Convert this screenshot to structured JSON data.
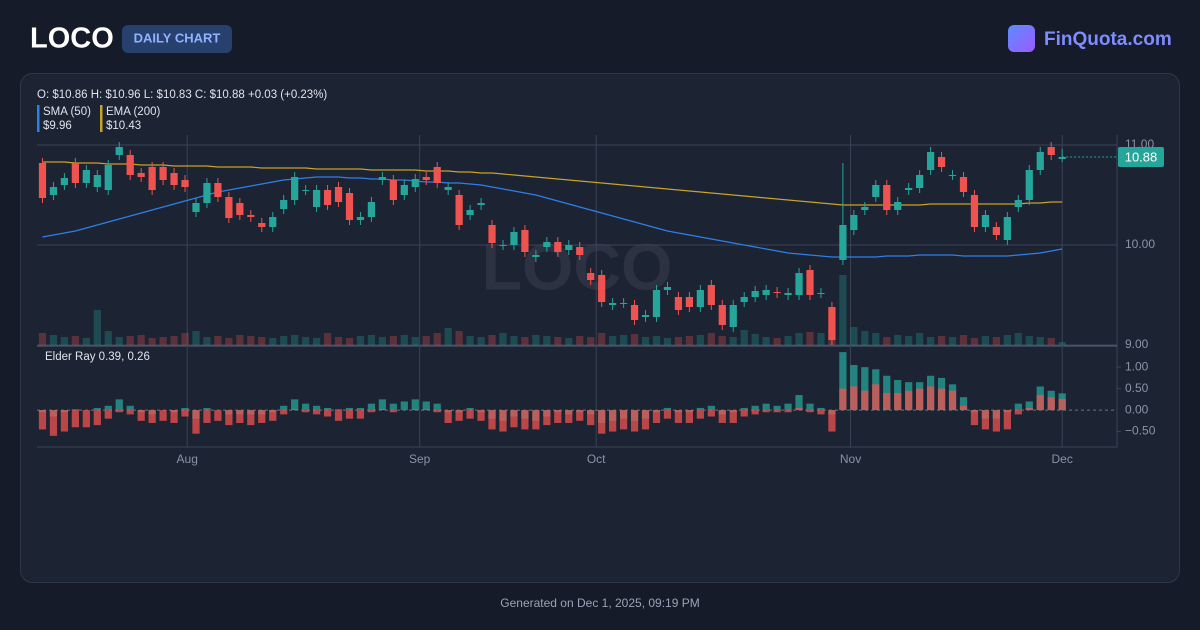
{
  "header": {
    "title": "LOCO",
    "badge": "DAILY CHART",
    "brand": "FinQuota.com"
  },
  "chart_data": {
    "type": "candlestick",
    "ohlc_text": "O: $10.86 H: $10.96 L: $10.83 C: $10.88 +0.03 (+0.23%)",
    "up_color": "#26a69a",
    "down_color": "#ef5350",
    "open": [
      10.82,
      10.5,
      10.6,
      10.82,
      10.62,
      10.58,
      10.55,
      10.9,
      10.9,
      10.72,
      10.78,
      10.78,
      10.72,
      10.65,
      10.33,
      10.42,
      10.62,
      10.48,
      10.42,
      10.3,
      10.22,
      10.18,
      10.36,
      10.45,
      10.55,
      10.38,
      10.55,
      10.58,
      10.52,
      10.25,
      10.28,
      10.65,
      10.65,
      10.5,
      10.58,
      10.68,
      10.78,
      10.55,
      10.5,
      10.3,
      10.4,
      10.2,
      10.0,
      10.0,
      10.15,
      9.88,
      9.98,
      10.03,
      9.95,
      9.98,
      9.72,
      9.7,
      9.4,
      9.42,
      9.4,
      9.28,
      9.28,
      9.55,
      9.48,
      9.48,
      9.38,
      9.6,
      9.4,
      9.18,
      9.43,
      9.48,
      9.5,
      9.53,
      9.5,
      9.5,
      9.75,
      9.52,
      9.38,
      9.85,
      10.15,
      10.35,
      10.48,
      10.6,
      10.35,
      10.55,
      10.57,
      10.75,
      10.88,
      10.7,
      10.68,
      10.5,
      10.18,
      10.18,
      10.05,
      10.38,
      10.45,
      10.75,
      10.98,
      10.86
    ],
    "high": [
      10.87,
      10.63,
      10.72,
      10.87,
      10.8,
      10.75,
      10.85,
      11.03,
      10.95,
      10.77,
      10.83,
      10.83,
      10.77,
      10.7,
      10.47,
      10.67,
      10.67,
      10.53,
      10.47,
      10.35,
      10.27,
      10.33,
      10.5,
      10.73,
      10.6,
      10.6,
      10.6,
      10.63,
      10.57,
      10.33,
      10.48,
      10.73,
      10.7,
      10.65,
      10.71,
      10.73,
      10.83,
      10.63,
      10.55,
      10.4,
      10.47,
      10.25,
      10.05,
      10.18,
      10.2,
      9.95,
      10.08,
      10.08,
      10.05,
      10.03,
      9.77,
      9.75,
      9.47,
      9.47,
      9.45,
      9.35,
      9.6,
      9.63,
      9.53,
      9.53,
      9.6,
      9.65,
      9.45,
      9.45,
      9.53,
      9.59,
      9.6,
      9.58,
      9.57,
      9.77,
      9.8,
      9.57,
      9.43,
      10.82,
      10.35,
      10.43,
      10.65,
      10.65,
      10.48,
      10.62,
      10.75,
      10.98,
      10.93,
      10.75,
      10.73,
      10.55,
      10.35,
      10.23,
      10.33,
      10.5,
      10.8,
      10.98,
      11.03,
      10.96
    ],
    "low": [
      10.42,
      10.45,
      10.55,
      10.57,
      10.57,
      10.53,
      10.5,
      10.85,
      10.65,
      10.63,
      10.5,
      10.6,
      10.55,
      10.53,
      10.28,
      10.37,
      10.43,
      10.22,
      10.25,
      10.23,
      10.13,
      10.13,
      10.31,
      10.4,
      10.5,
      10.33,
      10.35,
      10.38,
      10.2,
      10.2,
      10.23,
      10.6,
      10.4,
      10.45,
      10.53,
      10.6,
      10.57,
      10.5,
      10.15,
      10.25,
      10.35,
      9.97,
      9.95,
      9.95,
      9.88,
      9.83,
      9.93,
      9.88,
      9.9,
      9.85,
      9.6,
      9.38,
      9.35,
      9.37,
      9.2,
      9.23,
      9.23,
      9.5,
      9.3,
      9.33,
      9.33,
      9.35,
      9.15,
      9.13,
      9.38,
      9.43,
      9.45,
      9.47,
      9.45,
      9.45,
      9.45,
      9.47,
      9.0,
      9.8,
      10.1,
      10.3,
      10.43,
      10.3,
      10.3,
      10.5,
      10.52,
      10.7,
      10.73,
      10.65,
      10.48,
      10.13,
      10.13,
      10.05,
      10.0,
      10.33,
      10.4,
      10.7,
      10.85,
      10.83
    ],
    "close": [
      10.47,
      10.58,
      10.67,
      10.62,
      10.75,
      10.7,
      10.8,
      10.98,
      10.7,
      10.68,
      10.55,
      10.65,
      10.6,
      10.58,
      10.42,
      10.62,
      10.48,
      10.27,
      10.3,
      10.28,
      10.18,
      10.28,
      10.45,
      10.68,
      10.55,
      10.55,
      10.4,
      10.43,
      10.25,
      10.28,
      10.43,
      10.68,
      10.45,
      10.6,
      10.66,
      10.65,
      10.62,
      10.58,
      10.2,
      10.35,
      10.42,
      10.02,
      10.0,
      10.13,
      9.93,
      9.9,
      10.03,
      9.93,
      10.0,
      9.9,
      9.65,
      9.43,
      9.42,
      9.42,
      9.25,
      9.3,
      9.55,
      9.58,
      9.35,
      9.38,
      9.55,
      9.4,
      9.2,
      9.4,
      9.48,
      9.54,
      9.55,
      9.52,
      9.52,
      9.72,
      9.5,
      9.52,
      9.05,
      10.2,
      10.3,
      10.38,
      10.6,
      10.35,
      10.43,
      10.57,
      10.7,
      10.93,
      10.78,
      10.7,
      10.53,
      10.18,
      10.3,
      10.1,
      10.28,
      10.45,
      10.75,
      10.93,
      10.9,
      10.88
    ],
    "volume": [
      12,
      10,
      8,
      9,
      7,
      35,
      14,
      8,
      9,
      10,
      7,
      8,
      9,
      12,
      14,
      8,
      9,
      7,
      10,
      9,
      8,
      7,
      9,
      10,
      8,
      7,
      12,
      8,
      7,
      9,
      10,
      8,
      9,
      10,
      8,
      9,
      12,
      17,
      14,
      9,
      8,
      10,
      12,
      9,
      8,
      10,
      9,
      8,
      7,
      9,
      8,
      12,
      9,
      10,
      11,
      8,
      9,
      7,
      8,
      9,
      10,
      12,
      9,
      8,
      15,
      11,
      8,
      7,
      9,
      12,
      13,
      12,
      35,
      70,
      18,
      14,
      12,
      8,
      10,
      9,
      12,
      8,
      9,
      8,
      10,
      7,
      9,
      8,
      10,
      12,
      9,
      8,
      7,
      3
    ],
    "vlim": [
      0,
      100
    ],
    "overlays": [
      {
        "name": "SMA (50)",
        "value_label": "$9.96",
        "color": "#2f7fe8",
        "values": [
          10.08,
          10.1,
          10.12,
          10.14,
          10.17,
          10.2,
          10.23,
          10.26,
          10.29,
          10.32,
          10.35,
          10.38,
          10.41,
          10.44,
          10.47,
          10.5,
          10.53,
          10.55,
          10.57,
          10.59,
          10.61,
          10.63,
          10.65,
          10.66,
          10.67,
          10.68,
          10.68,
          10.68,
          10.67,
          10.67,
          10.66,
          10.66,
          10.65,
          10.65,
          10.64,
          10.63,
          10.63,
          10.62,
          10.62,
          10.61,
          10.6,
          10.58,
          10.56,
          10.54,
          10.52,
          10.5,
          10.47,
          10.44,
          10.41,
          10.38,
          10.35,
          10.32,
          10.29,
          10.26,
          10.23,
          10.2,
          10.17,
          10.14,
          10.12,
          10.1,
          10.08,
          10.06,
          10.04,
          10.02,
          10.0,
          9.98,
          9.96,
          9.94,
          9.92,
          9.91,
          9.9,
          9.89,
          9.88,
          9.88,
          9.88,
          9.88,
          9.88,
          9.89,
          9.89,
          9.89,
          9.9,
          9.9,
          9.9,
          9.9,
          9.89,
          9.89,
          9.89,
          9.89,
          9.89,
          9.9,
          9.91,
          9.92,
          9.94,
          9.96
        ]
      },
      {
        "name": "EMA (200)",
        "value_label": "$10.43",
        "color": "#c9a227",
        "values": [
          10.83,
          10.83,
          10.83,
          10.82,
          10.82,
          10.82,
          10.81,
          10.81,
          10.81,
          10.8,
          10.8,
          10.8,
          10.79,
          10.79,
          10.79,
          10.79,
          10.78,
          10.78,
          10.78,
          10.78,
          10.77,
          10.77,
          10.77,
          10.77,
          10.77,
          10.76,
          10.76,
          10.76,
          10.76,
          10.76,
          10.75,
          10.75,
          10.75,
          10.75,
          10.75,
          10.74,
          10.74,
          10.74,
          10.73,
          10.73,
          10.72,
          10.72,
          10.71,
          10.7,
          10.69,
          10.68,
          10.67,
          10.66,
          10.65,
          10.64,
          10.63,
          10.62,
          10.61,
          10.6,
          10.59,
          10.58,
          10.57,
          10.56,
          10.55,
          10.54,
          10.53,
          10.52,
          10.51,
          10.5,
          10.49,
          10.48,
          10.47,
          10.46,
          10.45,
          10.44,
          10.43,
          10.42,
          10.41,
          10.4,
          10.4,
          10.4,
          10.4,
          10.4,
          10.4,
          10.4,
          10.4,
          10.41,
          10.41,
          10.41,
          10.41,
          10.41,
          10.41,
          10.41,
          10.41,
          10.41,
          10.42,
          10.42,
          10.43,
          10.43
        ]
      }
    ],
    "xlim": [
      -0.5,
      98
    ],
    "xticks": [
      {
        "value": 13.2,
        "label": "Aug"
      },
      {
        "value": 34.4,
        "label": "Sep"
      },
      {
        "value": 50.5,
        "label": "Oct"
      },
      {
        "value": 73.7,
        "label": "Nov"
      },
      {
        "value": 93,
        "label": "Dec"
      }
    ],
    "ylim": [
      9.0,
      11.1
    ],
    "yticks": [
      {
        "value": 9,
        "label": "9.00"
      },
      {
        "value": 10,
        "label": "10.00"
      },
      {
        "value": 11,
        "label": "11.00"
      }
    ],
    "elder_ray": {
      "label": "Elder Ray 0.39, 0.26",
      "bull_color": "#26a69a",
      "bear_color": "#ef5350",
      "bull": [
        -0.05,
        -0.15,
        -0.05,
        0.02,
        0.0,
        0.05,
        0.1,
        0.25,
        0.1,
        -0.05,
        -0.1,
        0.0,
        -0.05,
        0.05,
        -0.2,
        0.05,
        0.0,
        -0.1,
        -0.1,
        -0.1,
        -0.1,
        -0.05,
        0.1,
        0.25,
        0.15,
        0.1,
        0.05,
        0.02,
        0.05,
        0.05,
        0.15,
        0.25,
        0.15,
        0.2,
        0.25,
        0.2,
        0.15,
        -0.05,
        -0.05,
        0.05,
        -0.05,
        -0.2,
        -0.25,
        -0.15,
        -0.2,
        -0.25,
        -0.15,
        -0.05,
        -0.1,
        -0.05,
        -0.1,
        -0.3,
        -0.25,
        -0.2,
        -0.25,
        -0.2,
        -0.05,
        0.05,
        -0.05,
        -0.05,
        0.05,
        0.1,
        -0.1,
        -0.05,
        0.05,
        0.1,
        0.15,
        0.1,
        0.15,
        0.35,
        0.15,
        0.05,
        -0.1,
        1.35,
        1.05,
        1.0,
        0.95,
        0.8,
        0.7,
        0.65,
        0.65,
        0.8,
        0.75,
        0.6,
        0.3,
        -0.05,
        -0.2,
        -0.2,
        -0.05,
        0.15,
        0.2,
        0.55,
        0.45,
        0.39
      ],
      "bear": [
        -0.45,
        -0.6,
        -0.5,
        -0.4,
        -0.4,
        -0.35,
        -0.2,
        -0.05,
        -0.1,
        -0.25,
        -0.3,
        -0.25,
        -0.3,
        -0.15,
        -0.55,
        -0.3,
        -0.25,
        -0.35,
        -0.3,
        -0.35,
        -0.3,
        -0.25,
        -0.1,
        0.02,
        -0.05,
        -0.1,
        -0.15,
        -0.25,
        -0.2,
        -0.2,
        -0.05,
        0.02,
        -0.05,
        0.0,
        0.02,
        0.02,
        -0.05,
        -0.3,
        -0.25,
        -0.2,
        -0.25,
        -0.45,
        -0.5,
        -0.4,
        -0.45,
        -0.45,
        -0.35,
        -0.3,
        -0.3,
        -0.25,
        -0.35,
        -0.55,
        -0.5,
        -0.45,
        -0.5,
        -0.45,
        -0.3,
        -0.2,
        -0.3,
        -0.3,
        -0.2,
        -0.15,
        -0.3,
        -0.3,
        -0.15,
        -0.1,
        -0.05,
        -0.05,
        -0.05,
        0.05,
        -0.05,
        -0.1,
        -0.5,
        0.5,
        0.55,
        0.45,
        0.6,
        0.4,
        0.4,
        0.45,
        0.5,
        0.55,
        0.5,
        0.45,
        0.1,
        -0.35,
        -0.45,
        -0.5,
        -0.45,
        -0.1,
        0.05,
        0.35,
        0.3,
        0.26
      ],
      "ylim": [
        -0.86,
        1.47
      ],
      "yticks": [
        {
          "value": -0.5,
          "label": "−0.50"
        },
        {
          "value": 0,
          "label": "0.00"
        },
        {
          "value": 0.5,
          "label": "0.50"
        },
        {
          "value": 1,
          "label": "1.00"
        }
      ]
    }
  },
  "footer": "Generated on Dec 1, 2025, 09:19 PM"
}
